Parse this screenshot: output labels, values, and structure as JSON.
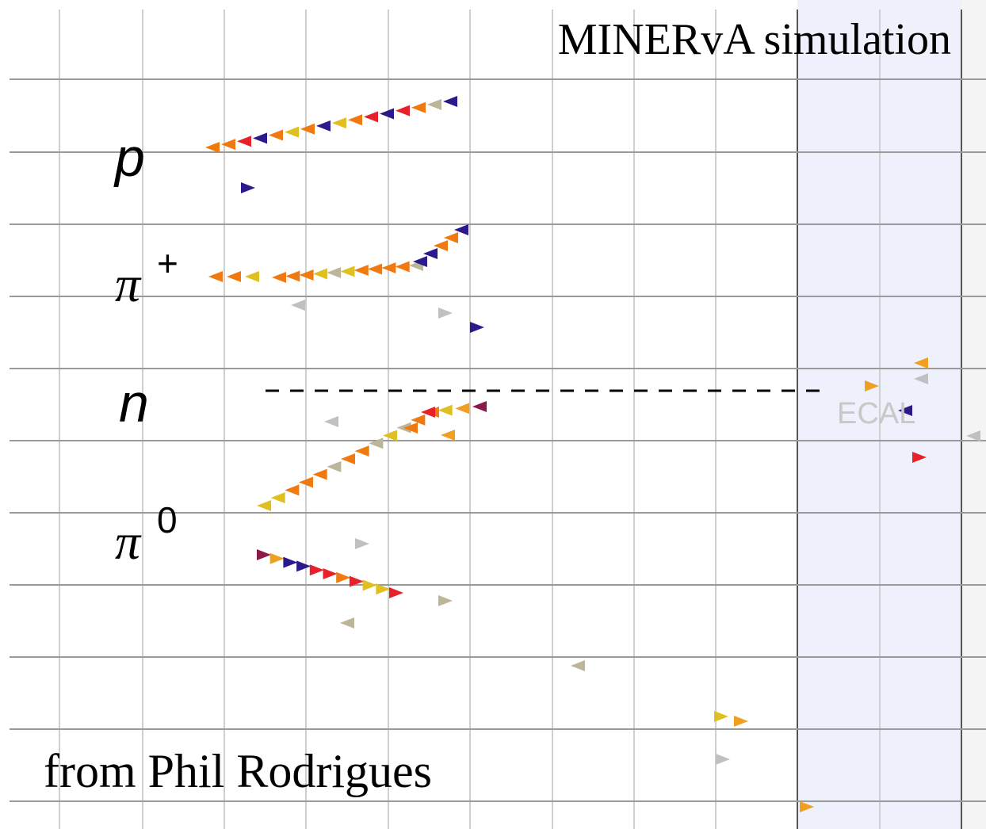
{
  "header": {
    "title": "MINERvA simulation"
  },
  "labels": {
    "p": "p",
    "pi_plus": {
      "symbol": "π",
      "charge": "+"
    },
    "n": "n",
    "pi_zero": {
      "symbol": "π",
      "charge": "0"
    },
    "ecal": "ECAL"
  },
  "footer": {
    "credit": "from Phil Rodrigues"
  }
}
